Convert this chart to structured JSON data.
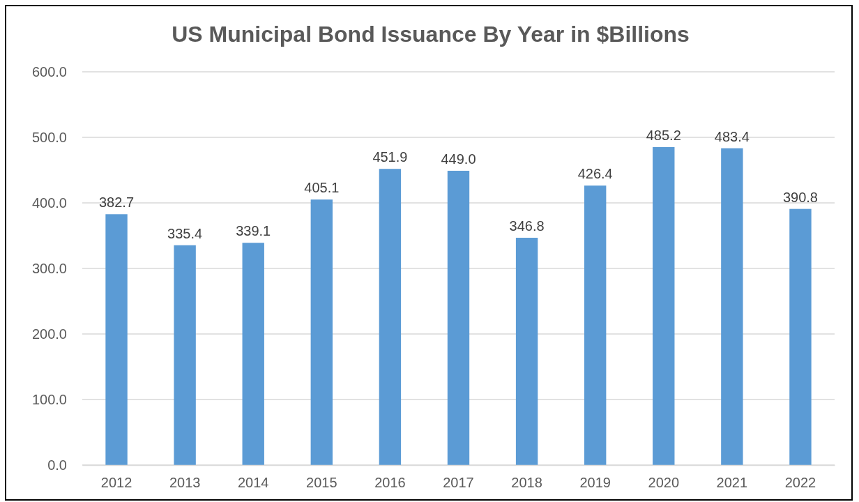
{
  "chart_data": {
    "type": "bar",
    "title": "US Municipal Bond Issuance By Year in $Billions",
    "categories": [
      "2012",
      "2013",
      "2014",
      "2015",
      "2016",
      "2017",
      "2018",
      "2019",
      "2020",
      "2021",
      "2022"
    ],
    "values": [
      382.7,
      335.4,
      339.1,
      405.1,
      451.9,
      449.0,
      346.8,
      426.4,
      485.2,
      483.4,
      390.8
    ],
    "value_labels": [
      "382.7",
      "335.4",
      "339.1",
      "405.1",
      "451.9",
      "449.0",
      "346.8",
      "426.4",
      "485.2",
      "483.4",
      "390.8"
    ],
    "color": "#5b9bd5",
    "ylim": [
      0,
      600
    ],
    "yticks": [
      {
        "value": 0,
        "label": "0.0"
      },
      {
        "value": 100,
        "label": "100.0"
      },
      {
        "value": 200,
        "label": "200.0"
      },
      {
        "value": 300,
        "label": "300.0"
      },
      {
        "value": 400,
        "label": "400.0"
      },
      {
        "value": 500,
        "label": "500.0"
      },
      {
        "value": 600,
        "label": "600.0"
      }
    ],
    "grid": "y"
  }
}
